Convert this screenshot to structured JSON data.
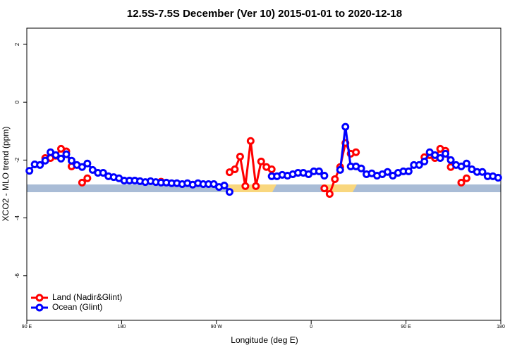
{
  "chart_data": {
    "type": "line",
    "title": "12.5S-7.5S December (Ver 10)   2015-01-01 to 2020-12-18",
    "x_label": "Longitude (deg E)",
    "y_label": "XCO2 - MLO trend (ppm)",
    "xlim": [
      90,
      540
    ],
    "xticks": [
      {
        "value": 90,
        "label": "90 E"
      },
      {
        "value": 180,
        "label": "180"
      },
      {
        "value": 270,
        "label": "90 W"
      },
      {
        "value": 360,
        "label": "0"
      },
      {
        "value": 450,
        "label": "90 E"
      },
      {
        "value": 540,
        "label": "180"
      }
    ],
    "ylim": [
      -7.54,
      2.56
    ],
    "yticks": [
      -6,
      -4,
      -2,
      0,
      2
    ],
    "legend": "bottomleft",
    "series": [
      {
        "name": "Land (Nadir&Glint)",
        "color": "#ff0000",
        "x": [
          107.5,
          112.5,
          117.5,
          122.5,
          127.5,
          132.5,
          137.5,
          142.5,
          147.5,
          152.5,
          217.5,
          222.5,
          282.5,
          287.5,
          292.5,
          297.5,
          302.5,
          307.5,
          312.5,
          317.5,
          322.5,
          327.5,
          372.5,
          377.5,
          382.5,
          387.5,
          392.5,
          397.5,
          402.5,
          407.5,
          467.5,
          472.5,
          477.5,
          482.5,
          487.5,
          492.5,
          497.5,
          502.5,
          507.5
        ],
        "values": [
          -1.93,
          -1.93,
          -1.85,
          -1.61,
          -1.7,
          -2.22,
          null,
          -2.78,
          -2.63,
          null,
          -2.75,
          null,
          -2.42,
          -2.32,
          -1.88,
          -2.9,
          -1.34,
          -2.9,
          -2.05,
          -2.24,
          -2.32,
          null,
          -2.98,
          -3.17,
          -2.66,
          -2.24,
          -1.41,
          -1.78,
          -1.73,
          null,
          -1.9,
          -1.83,
          -1.93,
          -1.61,
          -1.68,
          -2.24,
          null,
          -2.78,
          -2.63
        ]
      },
      {
        "name": "Ocean (Glint)",
        "color": "#0000ff",
        "x": [
          92.5,
          97.5,
          102.5,
          107.5,
          112.5,
          117.5,
          122.5,
          127.5,
          132.5,
          137.5,
          142.5,
          147.5,
          152.5,
          157.5,
          162.5,
          167.5,
          172.5,
          177.5,
          182.5,
          187.5,
          192.5,
          197.5,
          202.5,
          207.5,
          212.5,
          217.5,
          222.5,
          227.5,
          232.5,
          237.5,
          242.5,
          247.5,
          252.5,
          257.5,
          262.5,
          267.5,
          272.5,
          277.5,
          282.5,
          287.5,
          322.5,
          327.5,
          332.5,
          337.5,
          342.5,
          347.5,
          352.5,
          357.5,
          362.5,
          367.5,
          372.5,
          377.5,
          387.5,
          392.5,
          397.5,
          402.5,
          407.5,
          412.5,
          417.5,
          422.5,
          427.5,
          432.5,
          437.5,
          442.5,
          447.5,
          452.5,
          457.5,
          462.5,
          467.5,
          472.5,
          477.5,
          482.5,
          487.5,
          492.5,
          497.5,
          502.5,
          507.5,
          512.5,
          517.5,
          522.5,
          527.5,
          532.5,
          537.5
        ],
        "values": [
          -2.37,
          -2.15,
          -2.17,
          -2.02,
          -1.73,
          -1.83,
          -1.95,
          -1.8,
          -2.02,
          -2.17,
          -2.24,
          -2.12,
          -2.34,
          -2.44,
          -2.44,
          -2.56,
          -2.59,
          -2.63,
          -2.71,
          -2.71,
          -2.71,
          -2.73,
          -2.76,
          -2.73,
          -2.76,
          -2.78,
          -2.78,
          -2.8,
          -2.8,
          -2.83,
          -2.8,
          -2.85,
          -2.8,
          -2.83,
          -2.83,
          -2.83,
          -2.93,
          -2.88,
          -3.1,
          null,
          -2.56,
          -2.56,
          -2.51,
          -2.54,
          -2.49,
          -2.44,
          -2.44,
          -2.49,
          -2.39,
          -2.39,
          -2.54,
          null,
          -2.34,
          -0.85,
          -2.22,
          -2.22,
          -2.29,
          -2.49,
          -2.46,
          -2.54,
          -2.49,
          -2.41,
          -2.54,
          -2.44,
          -2.39,
          -2.39,
          -2.17,
          -2.17,
          -2.05,
          -1.73,
          -1.83,
          -1.93,
          -1.78,
          -2.0,
          -2.17,
          -2.22,
          -2.12,
          -2.32,
          -2.41,
          -2.41,
          -2.56,
          -2.56,
          -2.61
        ]
      }
    ]
  }
}
